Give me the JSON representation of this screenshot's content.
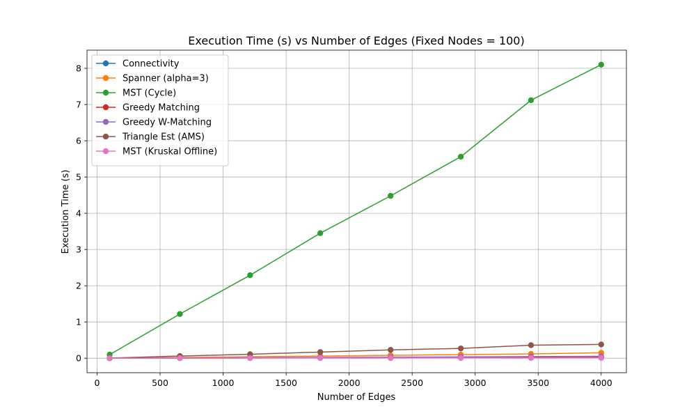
{
  "chart_data": {
    "type": "line",
    "title": "Execution Time (s) vs Number of Edges (Fixed Nodes = 100)",
    "xlabel": "Number of Edges",
    "ylabel": "Execution Time (s)",
    "xlim": [
      -80,
      4200
    ],
    "ylim": [
      -0.4,
      8.5
    ],
    "xticks": [
      0,
      500,
      1000,
      1500,
      2000,
      2500,
      3000,
      3500,
      4000
    ],
    "yticks": [
      0,
      1,
      2,
      3,
      4,
      5,
      6,
      7,
      8
    ],
    "grid": true,
    "legend_position": "top-left",
    "x": [
      100,
      657,
      1214,
      1771,
      2329,
      2886,
      3443,
      4000
    ],
    "series": [
      {
        "name": "Connectivity",
        "color": "#1f77b4",
        "values": [
          0.0,
          0.005,
          0.008,
          0.011,
          0.014,
          0.017,
          0.02,
          0.024
        ]
      },
      {
        "name": "Spanner (alpha=3)",
        "color": "#ff7f0e",
        "values": [
          0.002,
          0.02,
          0.04,
          0.06,
          0.08,
          0.1,
          0.12,
          0.15
        ]
      },
      {
        "name": "MST (Cycle)",
        "color": "#2ca02c",
        "values": [
          0.1,
          1.22,
          2.29,
          3.45,
          4.48,
          5.56,
          7.12,
          8.1
        ]
      },
      {
        "name": "Greedy Matching",
        "color": "#d62728",
        "values": [
          0.0,
          0.004,
          0.007,
          0.01,
          0.013,
          0.016,
          0.019,
          0.022
        ]
      },
      {
        "name": "Greedy W-Matching",
        "color": "#9467bd",
        "values": [
          0.0,
          0.008,
          0.015,
          0.022,
          0.03,
          0.037,
          0.045,
          0.053
        ]
      },
      {
        "name": "Triangle Est (AMS)",
        "color": "#8c564b",
        "values": [
          0.003,
          0.06,
          0.11,
          0.17,
          0.23,
          0.27,
          0.36,
          0.38
        ]
      },
      {
        "name": "MST (Kruskal Offline)",
        "color": "#e377c2",
        "values": [
          0.0,
          0.002,
          0.003,
          0.004,
          0.005,
          0.006,
          0.007,
          0.008
        ]
      }
    ]
  }
}
